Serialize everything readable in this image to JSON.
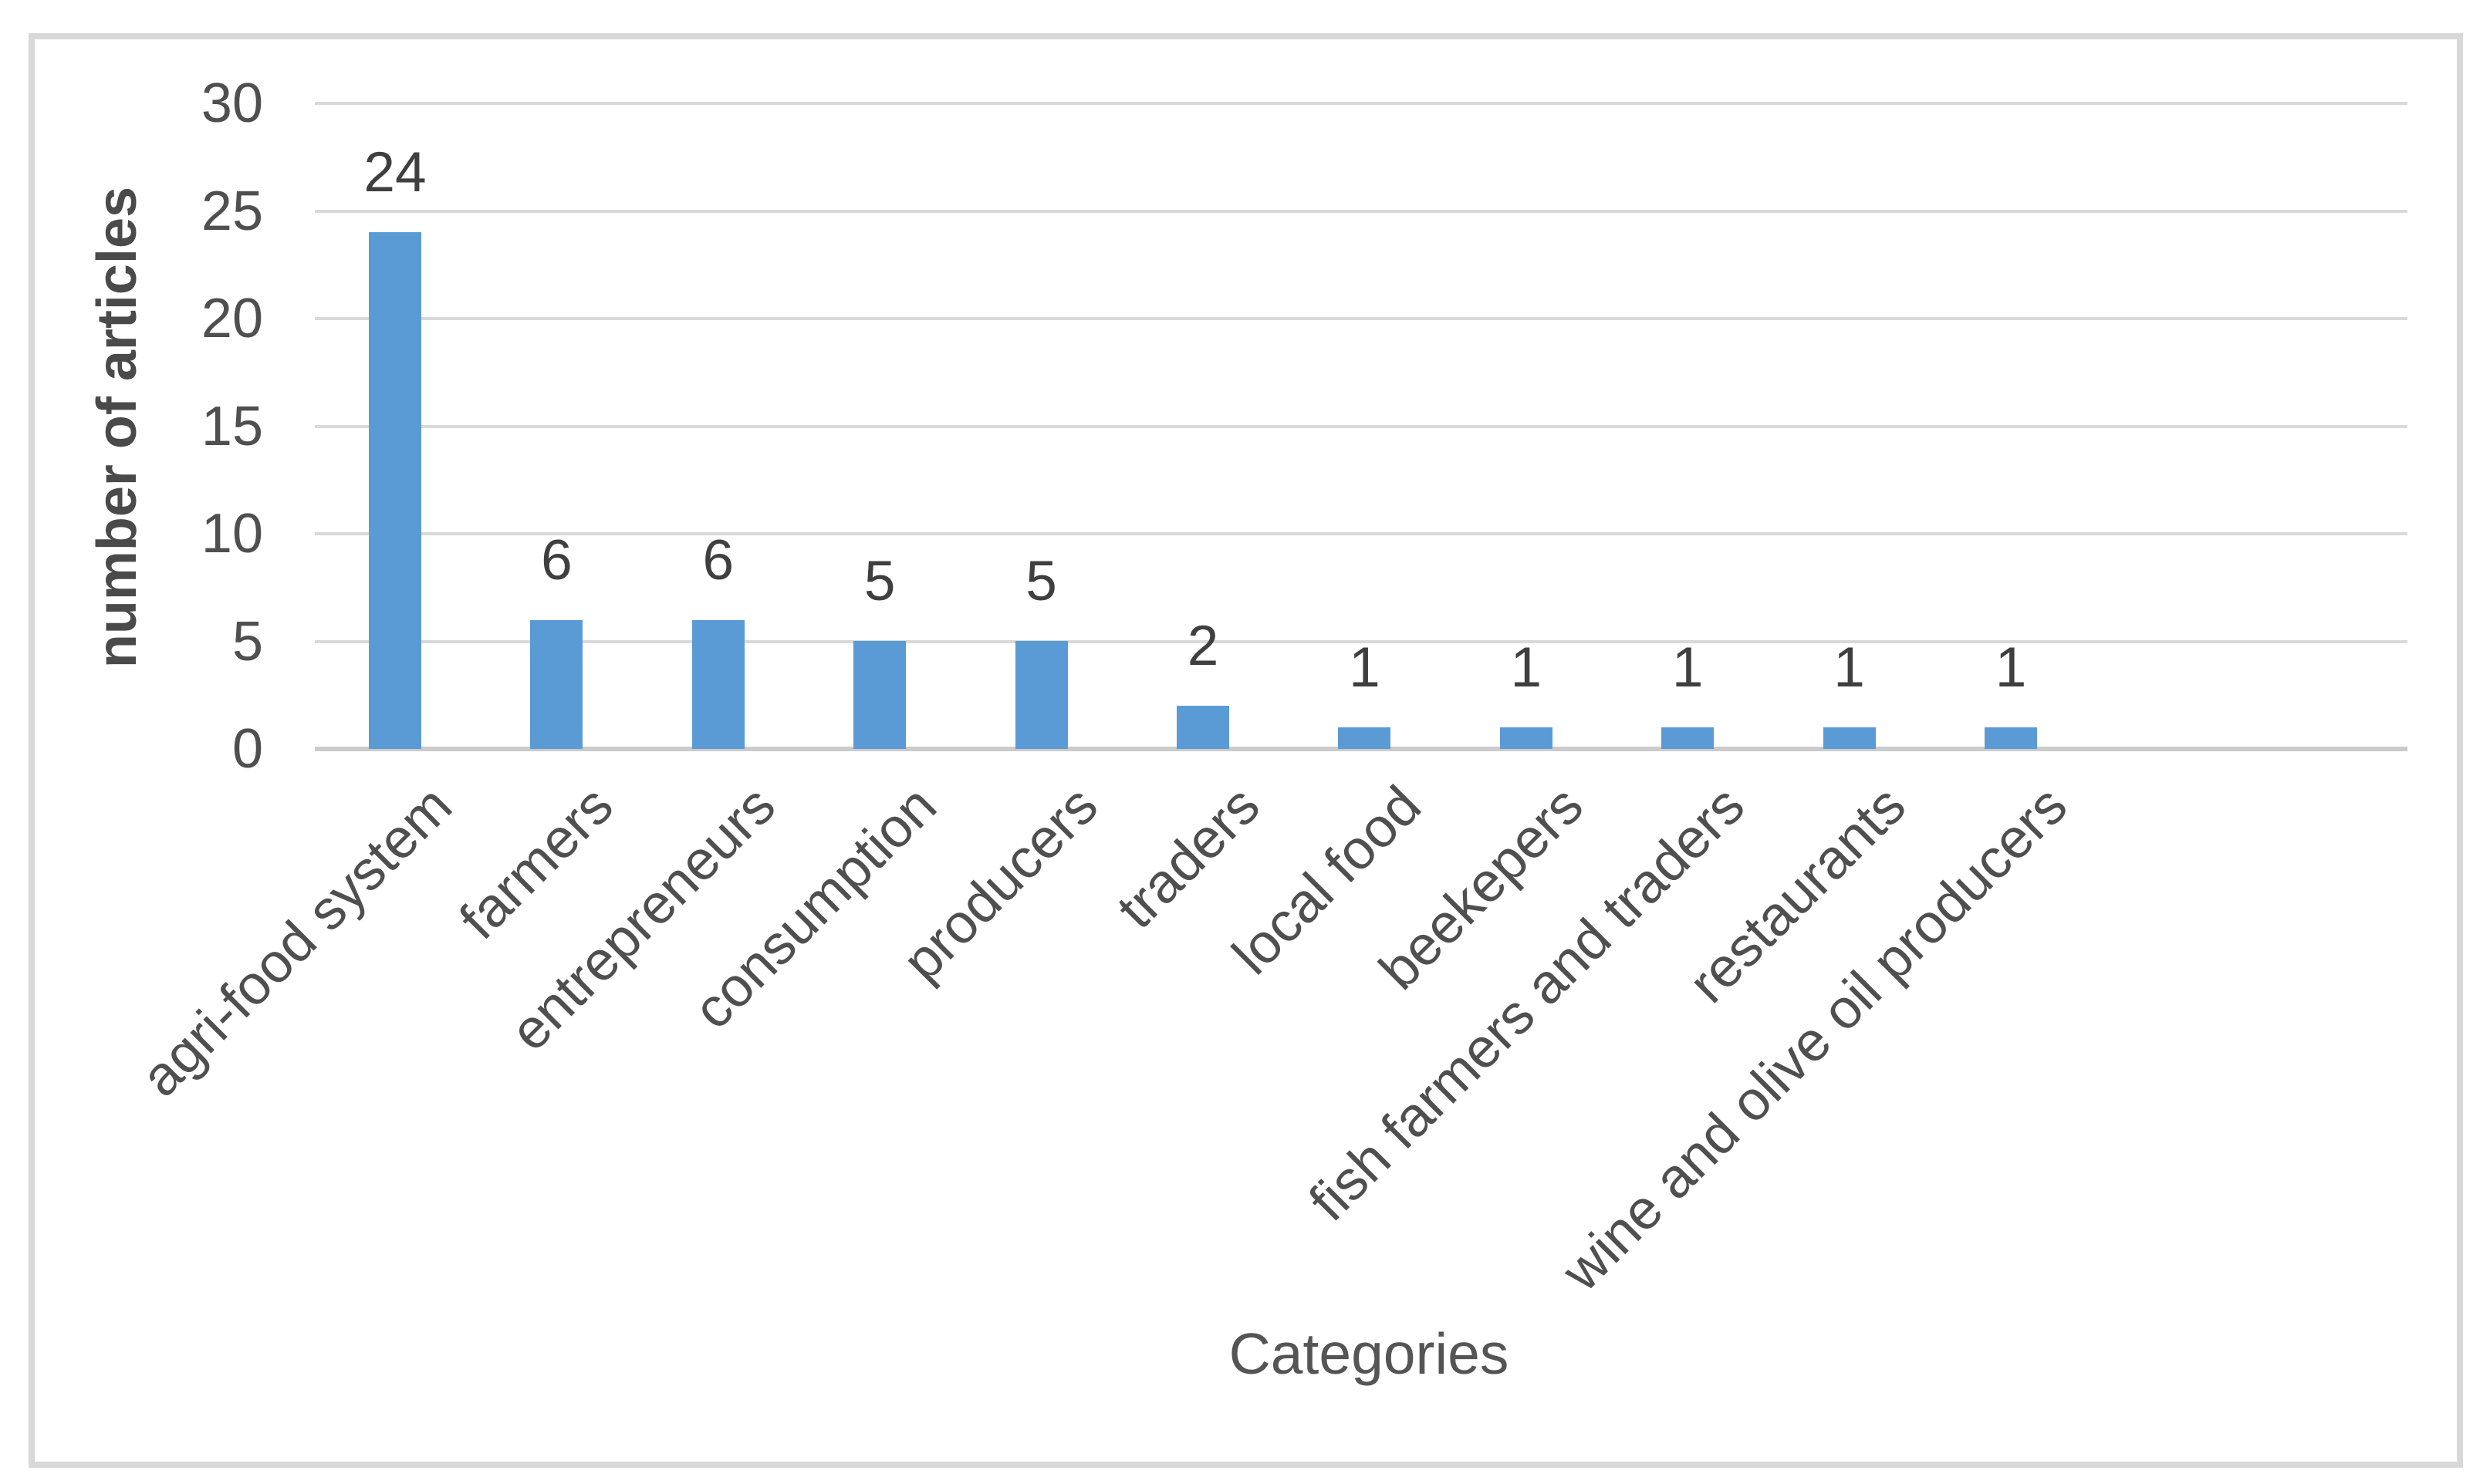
{
  "chart_data": {
    "type": "bar",
    "categories": [
      "agri-food system",
      "farmers",
      "entrepreneurs",
      "consumption",
      "producers",
      "traders",
      "local food",
      "beekepers",
      "fish farmers and traders",
      "restaurants",
      "wine and olive oil producers"
    ],
    "values": [
      24,
      6,
      6,
      5,
      5,
      2,
      1,
      1,
      1,
      1,
      1
    ],
    "title": "",
    "xlabel": "Categories",
    "ylabel": "number of articles",
    "ylim": [
      0,
      30
    ],
    "yticks": [
      0,
      5,
      10,
      15,
      20,
      25,
      30
    ],
    "grid": "horizontal",
    "legend_position": "none",
    "data_labels_shown": true,
    "colors": {
      "bar": "#5B9BD5",
      "gridline": "#D9D9D9",
      "axis_line": "#CBCBCB",
      "tick_label": "#4F4F4F",
      "data_label": "#3F3F3F",
      "axis_title": "#4A4A4A",
      "frame_border": "#D8D8D8",
      "background": "#FFFFFF"
    }
  }
}
